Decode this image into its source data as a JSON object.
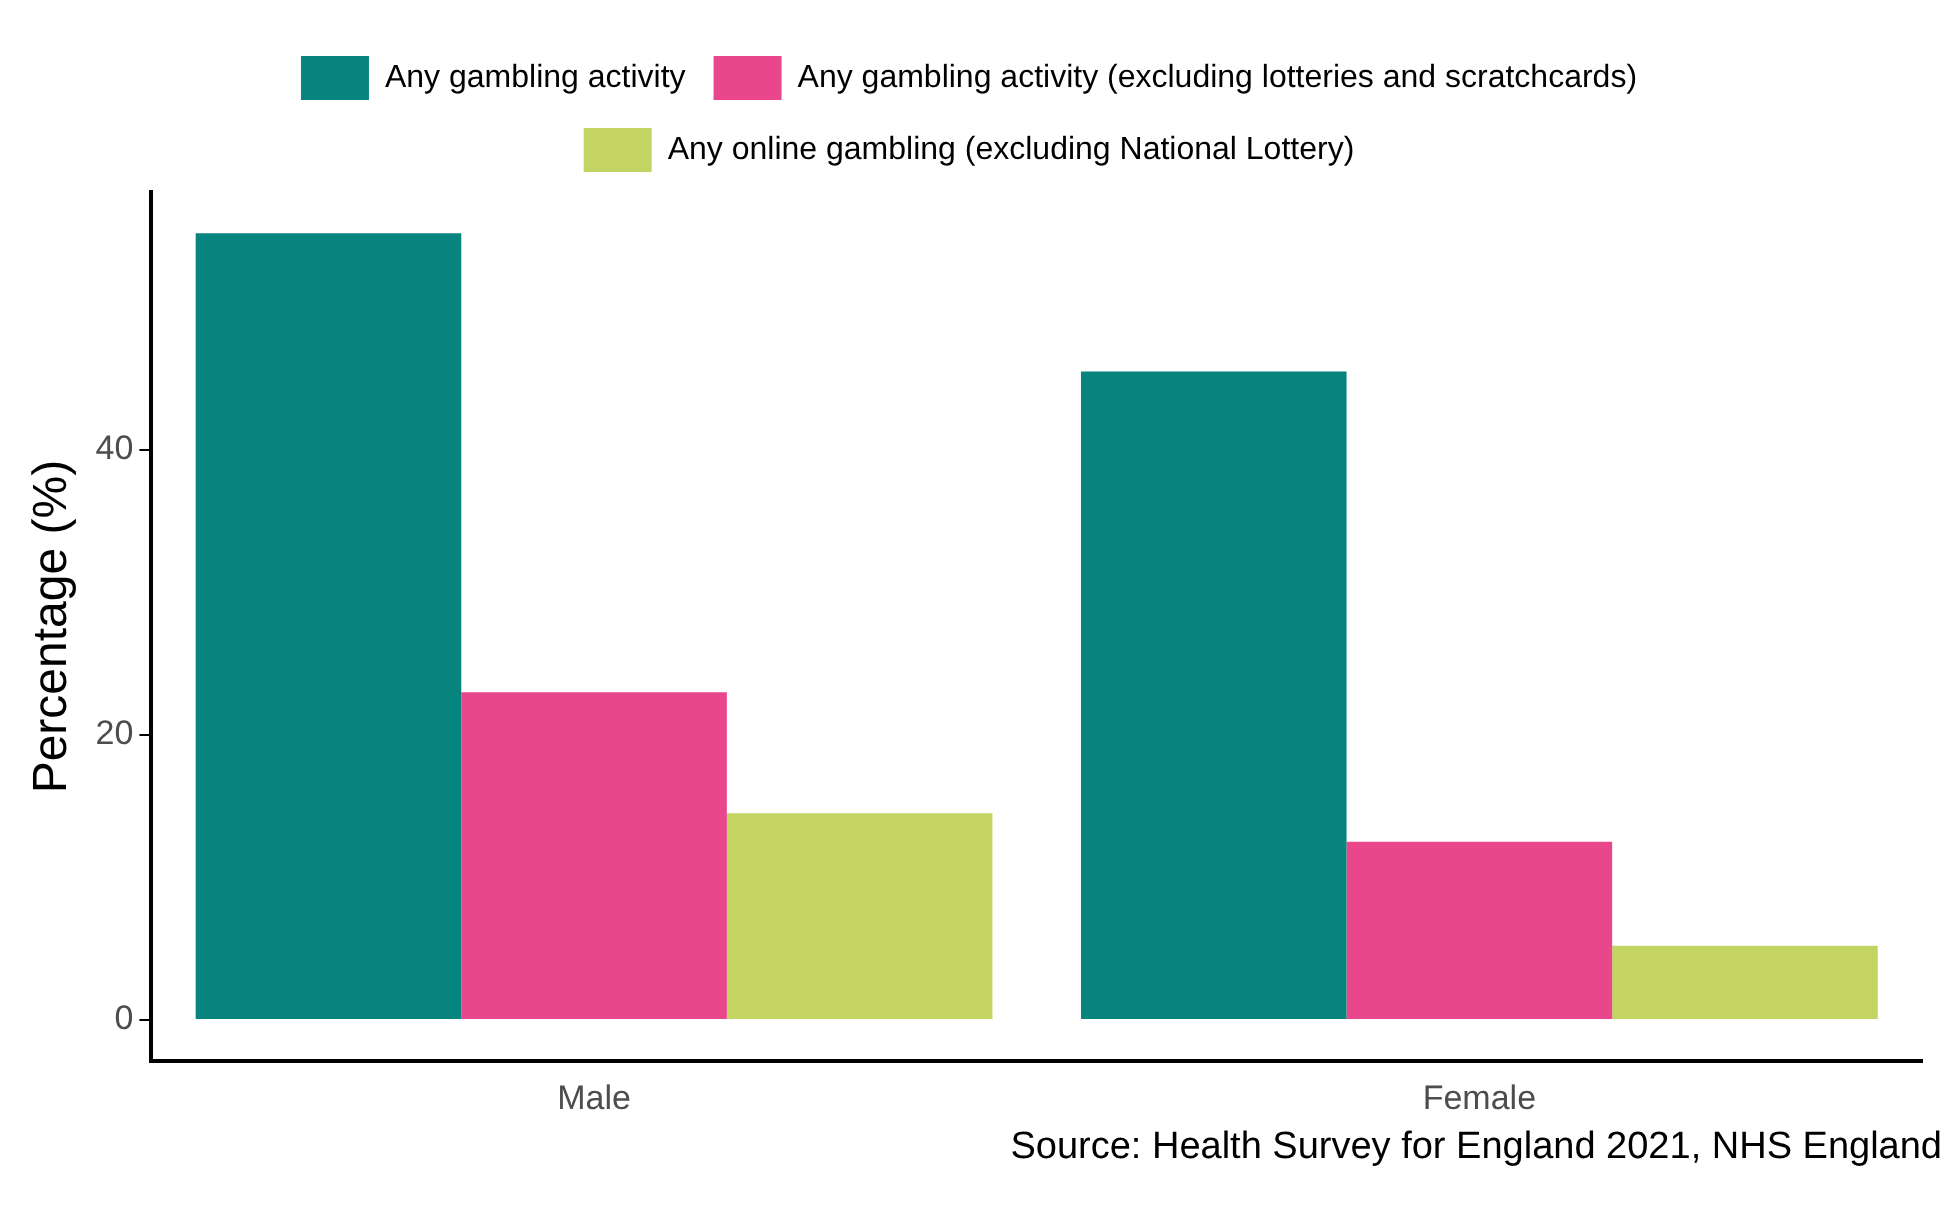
{
  "chart_data": {
    "type": "bar",
    "ylabel": "Percentage (%)",
    "categories": [
      "Male",
      "Female"
    ],
    "series": [
      {
        "name": "Any gambling activity",
        "color": "#08847f",
        "values": [
          55.2,
          45.5
        ]
      },
      {
        "name": "Any gambling activity (excluding lotteries and scratchcards)",
        "color": "#e9468c",
        "values": [
          23.0,
          12.5
        ]
      },
      {
        "name": "Any online gambling (excluding National Lottery)",
        "color": "#c3d463",
        "values": [
          14.5,
          5.2
        ]
      }
    ],
    "ylim": [
      -2.9,
      58.1
    ],
    "yticks": [
      0,
      20,
      40
    ],
    "grid": false,
    "legend": "top",
    "annotations": [
      "Source: Health Survey for England 2021, NHS England"
    ]
  }
}
